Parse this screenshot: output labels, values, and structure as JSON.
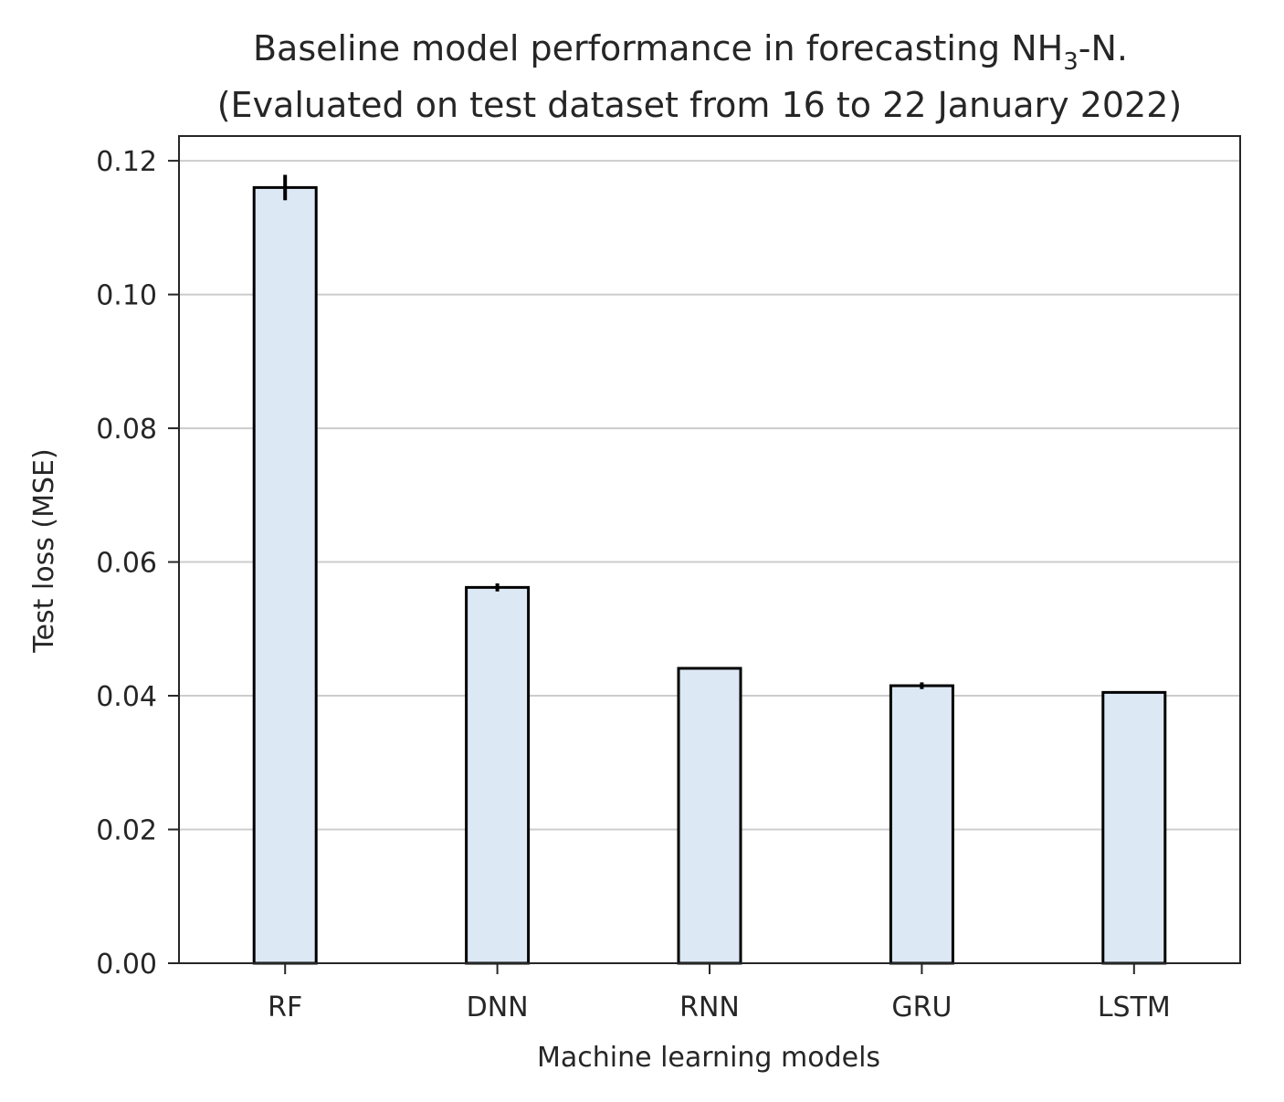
{
  "chart_data": {
    "type": "bar",
    "title_line1": {
      "before": "Baseline model performance in forecasting NH",
      "subscript": "3",
      "after": "-N."
    },
    "title_line2": "(Evaluated on test dataset from 16 to 22 January 2022)",
    "xlabel": "Machine learning models",
    "ylabel": "Test loss (MSE)",
    "categories": [
      "RF",
      "DNN",
      "RNN",
      "GRU",
      "LSTM"
    ],
    "values": [
      0.116,
      0.0562,
      0.0441,
      0.0415,
      0.0405
    ],
    "errors": [
      0.0019,
      0.0006,
      0.0,
      0.0005,
      0.0001
    ],
    "ylim": [
      0,
      0.1237
    ],
    "yticks": [
      "0.00",
      "0.02",
      "0.04",
      "0.06",
      "0.08",
      "0.10",
      "0.12"
    ],
    "grid": true,
    "colors": {
      "bar_fill": "#dde8f5",
      "bar_edge": "#000000",
      "grid": "#cccccc",
      "axis": "#262626"
    }
  }
}
